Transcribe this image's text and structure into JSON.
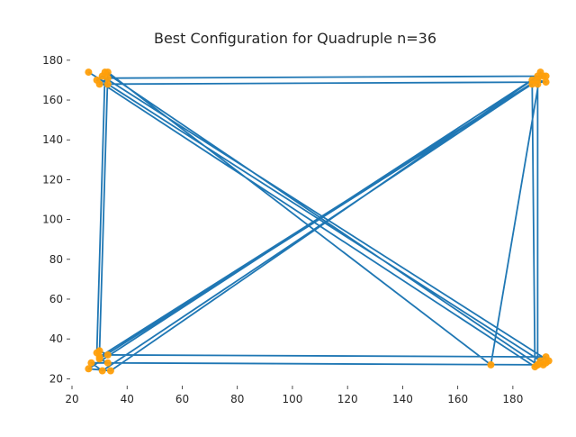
{
  "chart_data": {
    "type": "line",
    "title": "Best Configuration for Quadruple n=36",
    "xlabel": "",
    "ylabel": "",
    "xlim": [
      20,
      182
    ],
    "ylim": [
      17,
      184
    ],
    "xticks": [
      20,
      40,
      60,
      80,
      100,
      120,
      140,
      160,
      180
    ],
    "yticks": [
      20,
      40,
      60,
      80,
      100,
      120,
      140,
      160,
      180
    ],
    "grid": false,
    "colors": {
      "line": "#1f77b4",
      "marker": "#ff9f0a"
    },
    "series": [
      {
        "points": [
          [
            26,
            174
          ],
          [
            33,
            168
          ],
          [
            190,
            29
          ],
          [
            192,
            31
          ],
          [
            33,
            32
          ],
          [
            30,
            34
          ],
          [
            33,
            174
          ],
          [
            172,
            27
          ],
          [
            190,
            174
          ],
          [
            191,
            172
          ],
          [
            30,
            31
          ],
          [
            29,
            33
          ],
          [
            32,
            174
          ],
          [
            189,
            27
          ],
          [
            189,
            168
          ],
          [
            187,
            170
          ],
          [
            34,
            24
          ],
          [
            26,
            25
          ],
          [
            189,
            172
          ],
          [
            192,
            172
          ],
          [
            33,
            171
          ],
          [
            30,
            168
          ],
          [
            192,
            169
          ],
          [
            189,
            170
          ],
          [
            31,
            24
          ],
          [
            27,
            28
          ],
          [
            191,
            27
          ],
          [
            193,
            29
          ],
          [
            31,
            172
          ],
          [
            29,
            170
          ],
          [
            188,
            26
          ],
          [
            187,
            168
          ],
          [
            30,
            30
          ],
          [
            33,
            28
          ],
          [
            189,
            27
          ],
          [
            192,
            28
          ]
        ]
      }
    ]
  }
}
